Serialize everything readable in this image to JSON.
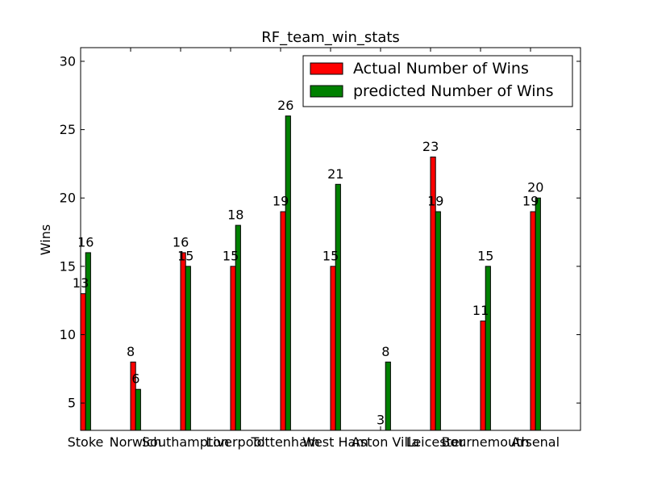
{
  "chart_data": {
    "type": "bar",
    "title": "RF_team_win_stats",
    "xlabel": "",
    "ylabel": "Wins",
    "ylim": [
      3,
      31
    ],
    "yticks": [
      5,
      10,
      15,
      20,
      25,
      30
    ],
    "grid": false,
    "legend_position": "top-right",
    "categories": [
      "Stoke",
      "Norwich",
      "Southampton",
      "Liverpool",
      "Tottenham",
      "West Ham",
      "Aston Villa",
      "Leicester",
      "Bournemouth",
      "Arsenal"
    ],
    "series": [
      {
        "name": "Actual Number of Wins",
        "color": "#ff0000",
        "values": [
          13,
          8,
          16,
          15,
          19,
          15,
          3,
          23,
          11,
          19
        ]
      },
      {
        "name": "predicted Number of Wins",
        "color": "#008000",
        "values": [
          16,
          6,
          15,
          18,
          26,
          21,
          8,
          19,
          15,
          20
        ]
      }
    ]
  }
}
